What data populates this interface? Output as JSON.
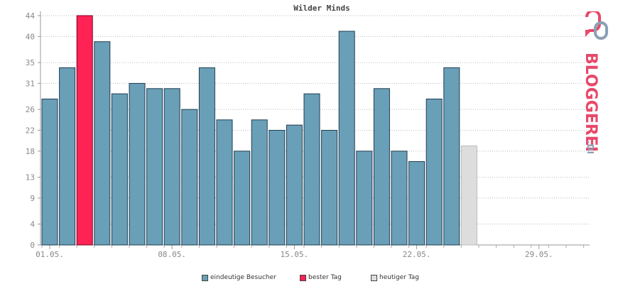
{
  "chart_data": {
    "type": "bar",
    "title": "Wilder Minds",
    "ylim": [
      0,
      44
    ],
    "y_ticks": [
      0,
      4,
      9,
      13,
      18,
      22,
      26,
      31,
      35,
      40,
      44
    ],
    "x_tick_labels": [
      "01.05.",
      "08.05.",
      "15.05.",
      "22.05.",
      "29.05."
    ],
    "grid": true,
    "values": [
      28,
      34,
      44,
      39,
      29,
      31,
      30,
      30,
      26,
      34,
      24,
      18,
      24,
      22,
      23,
      29,
      22,
      41,
      18,
      30,
      18,
      16,
      28,
      34,
      19
    ],
    "best_index": 2,
    "today_index": 24,
    "series": [
      {
        "name": "eindeutige Besucher",
        "color": "#6a9fb8"
      },
      {
        "name": "bester Tag",
        "color": "#ff2255"
      },
      {
        "name": "heutiger Tag",
        "color": "#dddddd"
      }
    ],
    "legend_position": "bottom"
  },
  "logo": {
    "text": "BLOGGEREI",
    "suffix": ".DE"
  }
}
